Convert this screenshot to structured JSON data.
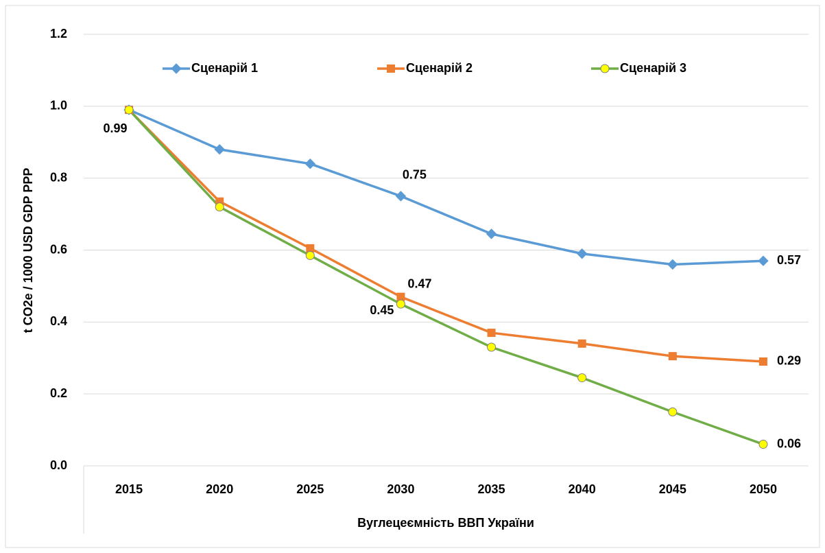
{
  "chart_data": {
    "type": "line",
    "y_label": "t CO2e / 1000 USD GDP PPP",
    "x_label": "Вуглецеємність ВВП України",
    "categories": [
      "2015",
      "2020",
      "2025",
      "2030",
      "2035",
      "2040",
      "2045",
      "2050"
    ],
    "series": [
      {
        "name": "Сценарій 1",
        "color": "#5b9bd5",
        "marker": "diamond",
        "marker_fill": "#5b9bd5",
        "values": [
          0.99,
          0.88,
          0.84,
          0.75,
          0.645,
          0.59,
          0.56,
          0.57
        ],
        "value_labels": [
          "0.99",
          null,
          null,
          "0.75",
          null,
          null,
          null,
          "0.57"
        ]
      },
      {
        "name": "Сценарій 2",
        "color": "#ed7d31",
        "marker": "square",
        "marker_fill": "#ed7d31",
        "values": [
          0.99,
          0.735,
          0.605,
          0.47,
          0.37,
          0.34,
          0.305,
          0.29
        ],
        "value_labels": [
          null,
          null,
          null,
          "0.47",
          null,
          null,
          null,
          "0.29"
        ]
      },
      {
        "name": "Сценарій 3",
        "color": "#70ad47",
        "marker": "circle",
        "marker_fill": "#ffff00",
        "values": [
          0.99,
          0.72,
          0.585,
          0.45,
          0.33,
          0.245,
          0.15,
          0.06
        ],
        "value_labels": [
          null,
          null,
          null,
          "0.45",
          null,
          null,
          null,
          "0.06"
        ]
      }
    ],
    "ylim": [
      0,
      1.2
    ],
    "yticks": [
      {
        "value": 0,
        "label": "0.0"
      },
      0.2,
      0.4,
      0.6,
      0.8,
      {
        "value": 1,
        "label": "1.0"
      },
      1.2
    ],
    "grid": true,
    "legend": "top"
  }
}
